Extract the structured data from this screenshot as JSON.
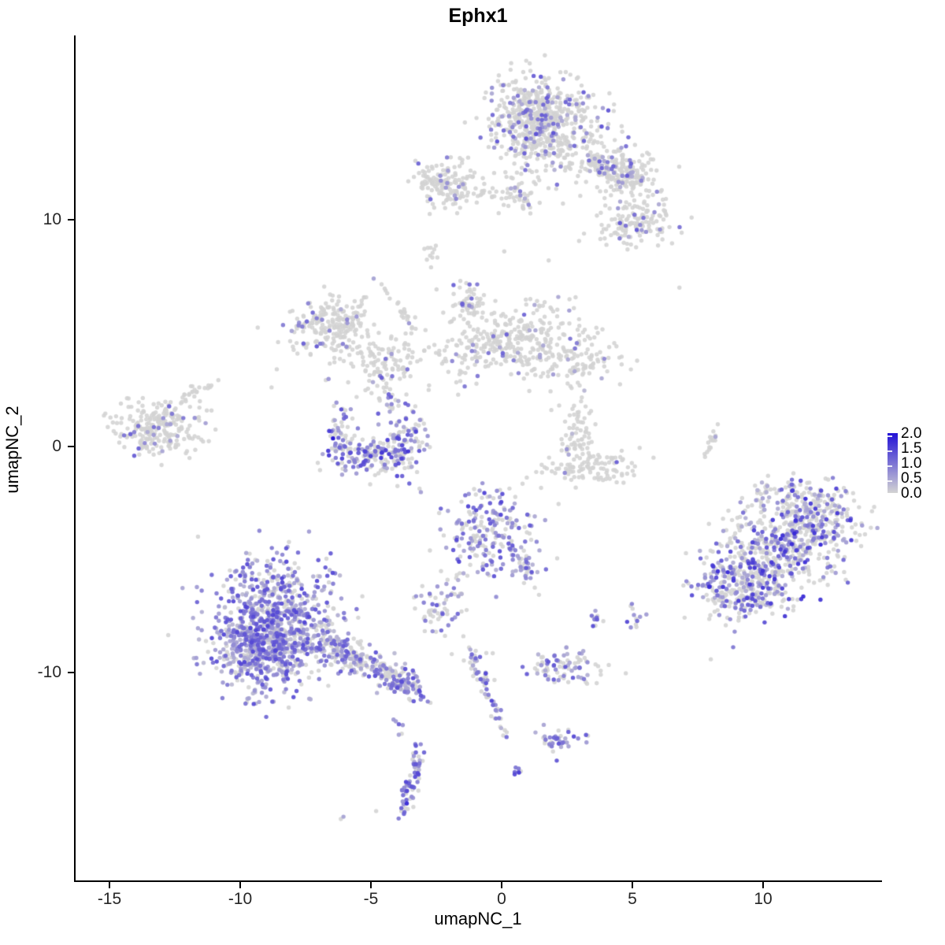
{
  "title": "Ephx1",
  "axes": {
    "x_label": "umapNC_1",
    "y_label": "umapNC_2",
    "x_ticks": [
      "-15",
      "-10",
      "-5",
      "0",
      "5",
      "10"
    ],
    "x_tick_values": [
      -15,
      -10,
      -5,
      0,
      5,
      10
    ],
    "y_ticks": [
      "10",
      "0",
      "-10"
    ],
    "y_tick_values": [
      10,
      0,
      -10
    ]
  },
  "legend": {
    "labels": [
      "2.0",
      "1.5",
      "1.0",
      "0.5",
      "0.0"
    ],
    "values": [
      2.0,
      1.5,
      1.0,
      0.5,
      0.0
    ],
    "low_color": "#D3D3D3",
    "high_color": "#2211D6"
  },
  "chart_data": {
    "type": "scatter",
    "title": "Ephx1",
    "xlabel": "umapNC_1",
    "ylabel": "umapNC_2",
    "x_range": [
      -16.3,
      14.5
    ],
    "y_range": [
      -19.2,
      18.1
    ],
    "grid": false,
    "legend_position": "right",
    "color_scale": {
      "low": "#D3D3D3",
      "high": "#2211D6",
      "domain": [
        0,
        2
      ]
    },
    "point_radius": 2.7,
    "note": "UMAP feature plot of Ephx1 expression; clusters given as gaussian blob summaries {cx,cy,sx,sy,rot,n,frac colored,vmin,vmax}",
    "clusters": [
      {
        "id": "top-main",
        "cx": 1.6,
        "cy": 14.2,
        "sx": 1.05,
        "sy": 1.05,
        "rot": 0,
        "n": 480,
        "frac": 0.22,
        "vmin": 0.4,
        "vmax": 1.4
      },
      {
        "id": "top-main-dense",
        "cx": 1.2,
        "cy": 14.8,
        "sx": 0.6,
        "sy": 0.6,
        "rot": 0,
        "n": 140,
        "frac": 0.2,
        "vmin": 0.4,
        "vmax": 1.2
      },
      {
        "id": "top-right-arm",
        "cx": 4.6,
        "cy": 11.9,
        "sx": 0.35,
        "sy": 0.8,
        "rot": 51,
        "n": 100,
        "frac": 0.22,
        "vmin": 0.4,
        "vmax": 1.3
      },
      {
        "id": "top-below-scatter",
        "cx": 2.6,
        "cy": 13.2,
        "sx": 0.9,
        "sy": 0.8,
        "rot": 0,
        "n": 60,
        "frac": 0.15,
        "vmin": 0.3,
        "vmax": 1.0
      },
      {
        "id": "band-left",
        "cx": -2.1,
        "cy": 11.5,
        "sx": 0.65,
        "sy": 0.5,
        "rot": 0,
        "n": 150,
        "frac": 0.07,
        "vmin": 0.5,
        "vmax": 1.3
      },
      {
        "id": "band-left-tail",
        "cx": -0.2,
        "cy": 11.2,
        "sx": 0.55,
        "sy": 0.15,
        "rot": 0,
        "n": 22,
        "frac": 0.04,
        "vmin": 0.4,
        "vmax": 0.8
      },
      {
        "id": "band-mid",
        "cx": 0.95,
        "cy": 11.1,
        "sx": 0.4,
        "sy": 0.45,
        "rot": 0,
        "n": 40,
        "frac": 0.1,
        "vmin": 0.4,
        "vmax": 1.0
      },
      {
        "id": "band-right-top",
        "cx": 4.4,
        "cy": 12.3,
        "sx": 0.8,
        "sy": 0.5,
        "rot": 0,
        "n": 130,
        "frac": 0.2,
        "vmin": 0.4,
        "vmax": 1.4
      },
      {
        "id": "band-right-low",
        "cx": 5.1,
        "cy": 9.9,
        "sx": 0.7,
        "sy": 0.5,
        "rot": 0,
        "n": 140,
        "frac": 0.15,
        "vmin": 0.4,
        "vmax": 1.3
      },
      {
        "id": "band-left-spur",
        "cx": -2.7,
        "cy": 8.7,
        "sx": 0.2,
        "sy": 0.2,
        "rot": 0,
        "n": 10,
        "frac": 0.0,
        "vmin": 0,
        "vmax": 0
      },
      {
        "id": "mid-left",
        "cx": -6.4,
        "cy": 5.2,
        "sx": 0.8,
        "sy": 0.7,
        "rot": 0,
        "n": 220,
        "frac": 0.05,
        "vmin": 0.4,
        "vmax": 1.1
      },
      {
        "id": "mid-left-edge",
        "cx": -7.5,
        "cy": 5.4,
        "sx": 0.22,
        "sy": 0.5,
        "rot": 0,
        "n": 14,
        "frac": 0.55,
        "vmin": 0.6,
        "vmax": 1.3
      },
      {
        "id": "mid-strand",
        "cx": -3.7,
        "cy": 5.75,
        "sx": 0.1,
        "sy": 0.95,
        "rot": 33,
        "n": 28,
        "frac": 0.03,
        "vmin": 0.4,
        "vmax": 0.8
      },
      {
        "id": "mid-bottom",
        "cx": -4.5,
        "cy": 3.6,
        "sx": 0.7,
        "sy": 0.5,
        "rot": 0,
        "n": 90,
        "frac": 0.1,
        "vmin": 0.4,
        "vmax": 1.1
      },
      {
        "id": "mid-right",
        "cx": 0.6,
        "cy": 4.6,
        "sx": 1.5,
        "sy": 0.85,
        "rot": 0,
        "n": 360,
        "frac": 0.07,
        "vmin": 0.4,
        "vmax": 1.2
      },
      {
        "id": "mid-right-peak",
        "cx": -1.3,
        "cy": 6.2,
        "sx": 0.35,
        "sy": 0.5,
        "rot": 0,
        "n": 50,
        "frac": 0.15,
        "vmin": 0.5,
        "vmax": 1.3
      },
      {
        "id": "mid-right-tail",
        "cx": 3.1,
        "cy": 3.8,
        "sx": 0.8,
        "sy": 0.5,
        "rot": 0,
        "n": 70,
        "frac": 0.05,
        "vmin": 0.4,
        "vmax": 1.0
      },
      {
        "id": "left-cluster",
        "cx": -13.1,
        "cy": 0.9,
        "sx": 0.8,
        "sy": 0.65,
        "rot": 0,
        "n": 240,
        "frac": 0.1,
        "vmin": 0.4,
        "vmax": 1.2
      },
      {
        "id": "left-arm",
        "cx": -11.7,
        "cy": 2.4,
        "sx": 0.15,
        "sy": 0.5,
        "rot": -50,
        "n": 22,
        "frac": 0.05,
        "vmin": 0.4,
        "vmax": 0.9
      },
      {
        "id": "crescent-left",
        "cx": -6.2,
        "cy": 0.6,
        "sx": 0.28,
        "sy": 0.75,
        "rot": 0,
        "n": 55,
        "frac": 0.5,
        "vmin": 0.4,
        "vmax": 1.6
      },
      {
        "id": "crescent-bottom",
        "cx": -5.0,
        "cy": -0.5,
        "sx": 0.85,
        "sy": 0.4,
        "rot": 0,
        "n": 150,
        "frac": 0.45,
        "vmin": 0.4,
        "vmax": 1.7
      },
      {
        "id": "crescent-right",
        "cx": -3.7,
        "cy": 0.6,
        "sx": 0.4,
        "sy": 0.85,
        "rot": 0,
        "n": 95,
        "frac": 0.5,
        "vmin": 0.4,
        "vmax": 1.7
      },
      {
        "id": "crescent-strand",
        "cx": -4.4,
        "cy": 2.3,
        "sx": 0.25,
        "sy": 0.6,
        "rot": 0,
        "n": 22,
        "frac": 0.4,
        "vmin": 0.4,
        "vmax": 1.3
      },
      {
        "id": "hook-stem",
        "cx": 2.9,
        "cy": 0.4,
        "sx": 0.35,
        "sy": 0.75,
        "rot": 0,
        "n": 65,
        "frac": 0.02,
        "vmin": 0.3,
        "vmax": 0.8
      },
      {
        "id": "hook-bowl",
        "cx": 3.4,
        "cy": -0.9,
        "sx": 0.95,
        "sy": 0.38,
        "rot": 0,
        "n": 105,
        "frac": 0.02,
        "vmin": 0.3,
        "vmax": 0.8
      },
      {
        "id": "right-strand",
        "cx": 8.0,
        "cy": 0.15,
        "sx": 0.08,
        "sy": 0.55,
        "rot": -19,
        "n": 16,
        "frac": 0.05,
        "vmin": 0.3,
        "vmax": 0.6
      },
      {
        "id": "bl-main",
        "cx": -8.7,
        "cy": -7.9,
        "sx": 1.2,
        "sy": 1.45,
        "rot": 0,
        "n": 850,
        "frac": 0.72,
        "vmin": 0.25,
        "vmax": 1.5
      },
      {
        "id": "bl-dense",
        "cx": -9.3,
        "cy": -8.9,
        "sx": 0.7,
        "sy": 0.8,
        "rot": 0,
        "n": 250,
        "frac": 0.75,
        "vmin": 0.3,
        "vmax": 1.5
      },
      {
        "id": "bl-tail-1",
        "cx": -5.8,
        "cy": -9.2,
        "sx": 0.3,
        "sy": 0.85,
        "rot": 56,
        "n": 150,
        "frac": 0.6,
        "vmin": 0.25,
        "vmax": 1.3
      },
      {
        "id": "bl-tail-2",
        "cx": -4.1,
        "cy": -10.25,
        "sx": 0.28,
        "sy": 0.7,
        "rot": 56,
        "n": 130,
        "frac": 0.65,
        "vmin": 0.3,
        "vmax": 1.4
      },
      {
        "id": "center-bottom",
        "cx": -0.4,
        "cy": -3.8,
        "sx": 0.9,
        "sy": 1.0,
        "rot": 0,
        "n": 210,
        "frac": 0.55,
        "vmin": 0.35,
        "vmax": 1.5
      },
      {
        "id": "cb-tail",
        "cx": 0.9,
        "cy": -5.4,
        "sx": 0.18,
        "sy": 0.6,
        "rot": 27,
        "n": 35,
        "frac": 0.5,
        "vmin": 0.35,
        "vmax": 1.3
      },
      {
        "id": "cb-drip",
        "cx": -1.6,
        "cy": -5.9,
        "sx": 0.2,
        "sy": 0.5,
        "rot": 0,
        "n": 8,
        "frac": 0.4,
        "vmin": 0.3,
        "vmax": 1.0
      },
      {
        "id": "small-mid",
        "cx": -2.4,
        "cy": -7.2,
        "sx": 0.45,
        "sy": 0.6,
        "rot": 0,
        "n": 55,
        "frac": 0.45,
        "vmin": 0.35,
        "vmax": 1.3
      },
      {
        "id": "dot-clump-a",
        "cx": 3.5,
        "cy": -7.6,
        "sx": 0.18,
        "sy": 0.25,
        "rot": 0,
        "n": 10,
        "frac": 0.7,
        "vmin": 0.5,
        "vmax": 1.5
      },
      {
        "id": "dot-clump-b",
        "cx": 5.15,
        "cy": -7.5,
        "sx": 0.2,
        "sy": 0.3,
        "rot": 0,
        "n": 12,
        "frac": 0.75,
        "vmin": 0.5,
        "vmax": 1.6
      },
      {
        "id": "strand-down",
        "cx": -0.5,
        "cy": -10.9,
        "sx": 0.14,
        "sy": 1.0,
        "rot": 20,
        "n": 50,
        "frac": 0.5,
        "vmin": 0.35,
        "vmax": 1.5
      },
      {
        "id": "strand-down-head",
        "cx": -1.0,
        "cy": -9.5,
        "sx": 0.25,
        "sy": 0.3,
        "rot": 0,
        "n": 20,
        "frac": 0.5,
        "vmin": 0.35,
        "vmax": 1.4
      },
      {
        "id": "horiz-blob",
        "cx": 2.4,
        "cy": -9.7,
        "sx": 0.8,
        "sy": 0.38,
        "rot": 0,
        "n": 85,
        "frac": 0.45,
        "vmin": 0.35,
        "vmax": 1.4
      },
      {
        "id": "small-low",
        "cx": 2.2,
        "cy": -12.9,
        "sx": 0.45,
        "sy": 0.35,
        "rot": 0,
        "n": 40,
        "frac": 0.6,
        "vmin": 0.4,
        "vmax": 1.5
      },
      {
        "id": "deep-pair",
        "cx": 0.6,
        "cy": -14.4,
        "sx": 0.12,
        "sy": 0.15,
        "rot": 0,
        "n": 7,
        "frac": 0.9,
        "vmin": 0.8,
        "vmax": 1.6
      },
      {
        "id": "banana-top",
        "cx": -3.3,
        "cy": -14.1,
        "sx": 0.12,
        "sy": 0.35,
        "rot": 0,
        "n": 35,
        "frac": 0.65,
        "vmin": 0.3,
        "vmax": 1.5
      },
      {
        "id": "banana-bottom",
        "cx": -3.6,
        "cy": -15.35,
        "sx": 0.14,
        "sy": 0.4,
        "rot": -8,
        "n": 40,
        "frac": 0.75,
        "vmin": 0.5,
        "vmax": 1.8
      },
      {
        "id": "banana-above-dots",
        "cx": -3.9,
        "cy": -12.3,
        "sx": 0.15,
        "sy": 0.3,
        "rot": 0,
        "n": 6,
        "frac": 0.6,
        "vmin": 0.5,
        "vmax": 1.2
      },
      {
        "id": "right-big-a",
        "cx": 9.2,
        "cy": -6.2,
        "sx": 0.95,
        "sy": 0.85,
        "rot": 0,
        "n": 320,
        "frac": 0.4,
        "vmin": 0.35,
        "vmax": 1.7
      },
      {
        "id": "right-big-b",
        "cx": 10.6,
        "cy": -4.6,
        "sx": 1.05,
        "sy": 0.95,
        "rot": 0,
        "n": 360,
        "frac": 0.42,
        "vmin": 0.35,
        "vmax": 1.8
      },
      {
        "id": "right-big-c",
        "cx": 11.9,
        "cy": -3.2,
        "sx": 0.85,
        "sy": 0.75,
        "rot": 0,
        "n": 260,
        "frac": 0.4,
        "vmin": 0.35,
        "vmax": 1.7
      },
      {
        "id": "right-big-top",
        "cx": 10.6,
        "cy": -2.1,
        "sx": 0.7,
        "sy": 0.4,
        "rot": 0,
        "n": 50,
        "frac": 0.35,
        "vmin": 0.35,
        "vmax": 1.4
      }
    ],
    "singles": [
      [
        -6.45,
        0.35,
        2.0
      ],
      [
        4.4,
        -0.7,
        1.2
      ],
      [
        -8.8,
        2.6,
        0
      ],
      [
        -8.6,
        3.4,
        0
      ],
      [
        6.8,
        7.0,
        0
      ],
      [
        1.8,
        8.2,
        0
      ],
      [
        0.1,
        8.6,
        0
      ],
      [
        -2.7,
        7.9,
        0
      ],
      [
        8.0,
        -9.4,
        0
      ],
      [
        -4.8,
        -16.1,
        0
      ],
      [
        -6.05,
        -16.35,
        0.5
      ],
      [
        -6.15,
        -16.45,
        0
      ],
      [
        2.2,
        1.8,
        0
      ],
      [
        1.9,
        1.6,
        0
      ]
    ]
  }
}
